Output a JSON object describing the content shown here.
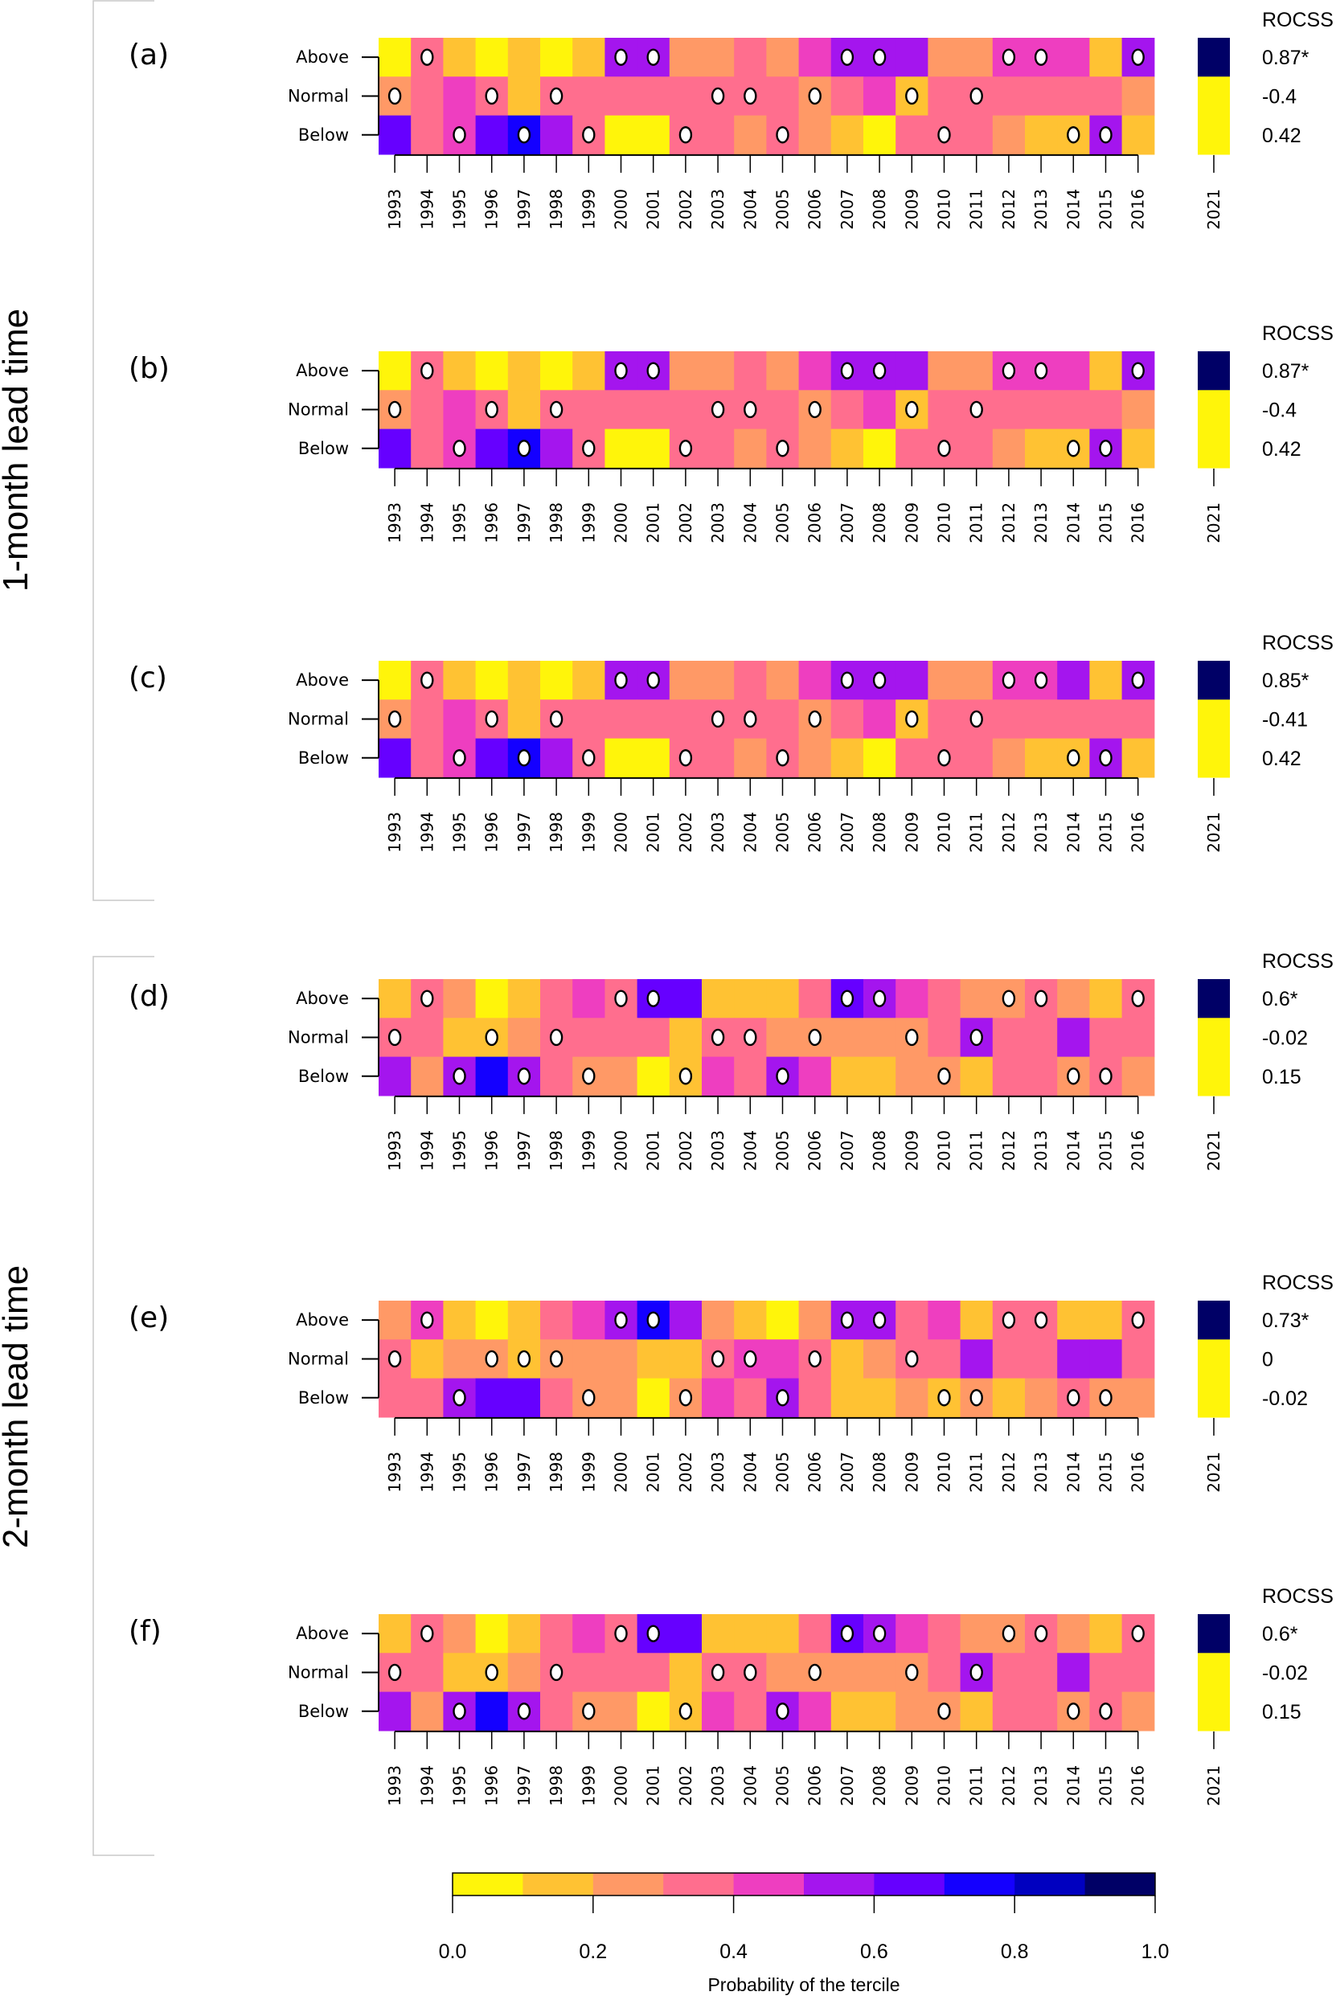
{
  "chart_data": {
    "type": "heatmap",
    "title": "",
    "years": [
      "1993",
      "1994",
      "1995",
      "1996",
      "1997",
      "1998",
      "1999",
      "2000",
      "2001",
      "2002",
      "2003",
      "2004",
      "2005",
      "2006",
      "2007",
      "2008",
      "2009",
      "2010",
      "2011",
      "2012",
      "2013",
      "2014",
      "2015",
      "2016"
    ],
    "forecast_year": "2021",
    "rows": [
      "Above",
      "Normal",
      "Below"
    ],
    "value_encoding": "probability bin index (0 = 0.0-0.1 ... 9 = 0.9-1.0); observed tercile marked with a dot",
    "lead_groups": [
      {
        "label": "1-month lead time",
        "panels": [
          "(a)",
          "(b)",
          "(c)"
        ]
      },
      {
        "label": "2-month lead time",
        "panels": [
          "(d)",
          "(e)",
          "(f)"
        ]
      }
    ],
    "panels": [
      {
        "label": "(a)",
        "bins": {
          "Above": [
            0,
            3,
            1,
            0,
            1,
            0,
            1,
            5,
            5,
            2,
            2,
            3,
            2,
            4,
            5,
            5,
            5,
            2,
            2,
            4,
            4,
            4,
            1,
            5
          ],
          "Normal": [
            2,
            3,
            4,
            3,
            1,
            3,
            3,
            3,
            3,
            3,
            3,
            3,
            3,
            2,
            3,
            4,
            1,
            3,
            3,
            3,
            3,
            3,
            3,
            2
          ],
          "Below": [
            6,
            3,
            4,
            6,
            7,
            5,
            3,
            0,
            0,
            3,
            3,
            2,
            3,
            2,
            1,
            0,
            3,
            3,
            3,
            2,
            1,
            1,
            5,
            1
          ]
        },
        "observed": {
          "Above": [
            0,
            1,
            0,
            0,
            0,
            0,
            0,
            1,
            1,
            0,
            0,
            0,
            0,
            0,
            1,
            1,
            0,
            0,
            0,
            1,
            1,
            0,
            0,
            1
          ],
          "Normal": [
            1,
            0,
            0,
            1,
            0,
            1,
            0,
            0,
            0,
            0,
            1,
            1,
            0,
            1,
            0,
            0,
            1,
            0,
            1,
            0,
            0,
            0,
            0,
            0
          ],
          "Below": [
            0,
            0,
            1,
            0,
            1,
            0,
            1,
            0,
            0,
            1,
            0,
            0,
            1,
            0,
            0,
            0,
            0,
            1,
            0,
            0,
            0,
            1,
            1,
            0
          ]
        },
        "rocss_title": "ROCSS",
        "rocss_bins": {
          "Above": 9,
          "Normal": 0,
          "Below": 0
        },
        "rocss": {
          "Above": "0.87*",
          "Normal": "-0.4",
          "Below": "0.42"
        }
      },
      {
        "label": "(b)",
        "bins": {
          "Above": [
            0,
            3,
            1,
            0,
            1,
            0,
            1,
            5,
            5,
            2,
            2,
            3,
            2,
            4,
            5,
            5,
            5,
            2,
            2,
            4,
            4,
            4,
            1,
            5
          ],
          "Normal": [
            2,
            3,
            4,
            3,
            1,
            3,
            3,
            3,
            3,
            3,
            3,
            3,
            3,
            2,
            3,
            4,
            1,
            3,
            3,
            3,
            3,
            3,
            3,
            2
          ],
          "Below": [
            6,
            3,
            4,
            6,
            7,
            5,
            3,
            0,
            0,
            3,
            3,
            2,
            3,
            2,
            1,
            0,
            3,
            3,
            3,
            2,
            1,
            1,
            5,
            1
          ]
        },
        "observed": {
          "Above": [
            0,
            1,
            0,
            0,
            0,
            0,
            0,
            1,
            1,
            0,
            0,
            0,
            0,
            0,
            1,
            1,
            0,
            0,
            0,
            1,
            1,
            0,
            0,
            1
          ],
          "Normal": [
            1,
            0,
            0,
            1,
            0,
            1,
            0,
            0,
            0,
            0,
            1,
            1,
            0,
            1,
            0,
            0,
            1,
            0,
            1,
            0,
            0,
            0,
            0,
            0
          ],
          "Below": [
            0,
            0,
            1,
            0,
            1,
            0,
            1,
            0,
            0,
            1,
            0,
            0,
            1,
            0,
            0,
            0,
            0,
            1,
            0,
            0,
            0,
            1,
            1,
            0
          ]
        },
        "rocss_title": "ROCSS",
        "rocss_bins": {
          "Above": 9,
          "Normal": 0,
          "Below": 0
        },
        "rocss": {
          "Above": "0.87*",
          "Normal": "-0.4",
          "Below": "0.42"
        }
      },
      {
        "label": "(c)",
        "bins": {
          "Above": [
            0,
            3,
            1,
            0,
            1,
            0,
            1,
            5,
            5,
            2,
            2,
            3,
            2,
            4,
            5,
            5,
            5,
            2,
            2,
            4,
            4,
            5,
            1,
            5
          ],
          "Normal": [
            2,
            3,
            4,
            3,
            1,
            3,
            3,
            3,
            3,
            3,
            3,
            3,
            3,
            2,
            3,
            4,
            1,
            3,
            3,
            3,
            3,
            3,
            3,
            3
          ],
          "Below": [
            6,
            3,
            4,
            6,
            7,
            5,
            3,
            0,
            0,
            3,
            3,
            2,
            3,
            2,
            1,
            0,
            3,
            3,
            3,
            2,
            1,
            1,
            5,
            1
          ]
        },
        "observed": {
          "Above": [
            0,
            1,
            0,
            0,
            0,
            0,
            0,
            1,
            1,
            0,
            0,
            0,
            0,
            0,
            1,
            1,
            0,
            0,
            0,
            1,
            1,
            0,
            0,
            1
          ],
          "Normal": [
            1,
            0,
            0,
            1,
            0,
            1,
            0,
            0,
            0,
            0,
            1,
            1,
            0,
            1,
            0,
            0,
            1,
            0,
            1,
            0,
            0,
            0,
            0,
            0
          ],
          "Below": [
            0,
            0,
            1,
            0,
            1,
            0,
            1,
            0,
            0,
            1,
            0,
            0,
            1,
            0,
            0,
            0,
            0,
            1,
            0,
            0,
            0,
            1,
            1,
            0
          ]
        },
        "rocss_title": "ROCSS",
        "rocss_bins": {
          "Above": 9,
          "Normal": 0,
          "Below": 0
        },
        "rocss": {
          "Above": "0.85*",
          "Normal": "-0.41",
          "Below": "0.42"
        }
      },
      {
        "label": "(d)",
        "bins": {
          "Above": [
            1,
            3,
            2,
            0,
            1,
            3,
            4,
            3,
            6,
            6,
            1,
            1,
            1,
            3,
            6,
            5,
            4,
            3,
            2,
            2,
            3,
            2,
            1,
            3
          ],
          "Normal": [
            3,
            3,
            1,
            1,
            2,
            3,
            3,
            3,
            3,
            1,
            3,
            3,
            2,
            2,
            2,
            2,
            2,
            3,
            5,
            3,
            3,
            5,
            3,
            3
          ],
          "Below": [
            5,
            2,
            5,
            7,
            5,
            3,
            2,
            2,
            0,
            1,
            4,
            3,
            5,
            4,
            1,
            1,
            2,
            2,
            1,
            3,
            3,
            2,
            3,
            2
          ]
        },
        "observed": {
          "Above": [
            0,
            1,
            0,
            0,
            0,
            0,
            0,
            1,
            1,
            0,
            0,
            0,
            0,
            0,
            1,
            1,
            0,
            0,
            0,
            1,
            1,
            0,
            0,
            1
          ],
          "Normal": [
            1,
            0,
            0,
            1,
            0,
            1,
            0,
            0,
            0,
            0,
            1,
            1,
            0,
            1,
            0,
            0,
            1,
            0,
            1,
            0,
            0,
            0,
            0,
            0
          ],
          "Below": [
            0,
            0,
            1,
            0,
            1,
            0,
            1,
            0,
            0,
            1,
            0,
            0,
            1,
            0,
            0,
            0,
            0,
            1,
            0,
            0,
            0,
            1,
            1,
            0
          ]
        },
        "rocss_title": "ROCSS",
        "rocss_bins": {
          "Above": 9,
          "Normal": 0,
          "Below": 0
        },
        "rocss": {
          "Above": "0.6*",
          "Normal": "-0.02",
          "Below": "0.15"
        }
      },
      {
        "label": "(e)",
        "bins": {
          "Above": [
            2,
            4,
            1,
            0,
            1,
            3,
            4,
            5,
            7,
            5,
            2,
            1,
            0,
            2,
            5,
            5,
            3,
            4,
            1,
            3,
            3,
            1,
            1,
            3
          ],
          "Normal": [
            3,
            1,
            2,
            2,
            1,
            2,
            2,
            2,
            1,
            1,
            3,
            4,
            4,
            3,
            1,
            2,
            3,
            3,
            5,
            3,
            3,
            5,
            5,
            3
          ],
          "Below": [
            3,
            3,
            5,
            6,
            6,
            3,
            2,
            2,
            0,
            2,
            4,
            3,
            5,
            3,
            1,
            1,
            2,
            1,
            2,
            1,
            2,
            3,
            2,
            2
          ]
        },
        "observed": {
          "Above": [
            0,
            1,
            0,
            0,
            0,
            0,
            0,
            1,
            1,
            0,
            0,
            0,
            0,
            0,
            1,
            1,
            0,
            0,
            0,
            1,
            1,
            0,
            0,
            1
          ],
          "Normal": [
            1,
            0,
            0,
            1,
            1,
            1,
            0,
            0,
            0,
            0,
            1,
            1,
            0,
            1,
            0,
            0,
            1,
            0,
            0,
            0,
            0,
            0,
            0,
            0
          ],
          "Below": [
            0,
            0,
            1,
            0,
            0,
            0,
            1,
            0,
            0,
            1,
            0,
            0,
            1,
            0,
            0,
            0,
            0,
            1,
            1,
            0,
            0,
            1,
            1,
            0
          ]
        },
        "rocss_title": "ROCSS",
        "rocss_bins": {
          "Above": 9,
          "Normal": 0,
          "Below": 0
        },
        "rocss": {
          "Above": "0.73*",
          "Normal": "0",
          "Below": "-0.02"
        }
      },
      {
        "label": "(f)",
        "bins": {
          "Above": [
            1,
            3,
            2,
            0,
            1,
            3,
            4,
            3,
            6,
            6,
            1,
            1,
            1,
            3,
            6,
            5,
            4,
            3,
            2,
            2,
            3,
            2,
            1,
            3
          ],
          "Normal": [
            3,
            3,
            1,
            1,
            2,
            3,
            3,
            3,
            3,
            1,
            3,
            3,
            2,
            2,
            2,
            2,
            2,
            3,
            5,
            3,
            3,
            5,
            3,
            3
          ],
          "Below": [
            5,
            2,
            5,
            7,
            5,
            3,
            2,
            2,
            0,
            1,
            4,
            3,
            5,
            4,
            1,
            1,
            2,
            2,
            1,
            3,
            3,
            2,
            3,
            2
          ]
        },
        "observed": {
          "Above": [
            0,
            1,
            0,
            0,
            0,
            0,
            0,
            1,
            1,
            0,
            0,
            0,
            0,
            0,
            1,
            1,
            0,
            0,
            0,
            1,
            1,
            0,
            0,
            1
          ],
          "Normal": [
            1,
            0,
            0,
            1,
            0,
            1,
            0,
            0,
            0,
            0,
            1,
            1,
            0,
            1,
            0,
            0,
            1,
            0,
            1,
            0,
            0,
            0,
            0,
            0
          ],
          "Below": [
            0,
            0,
            1,
            0,
            1,
            0,
            1,
            0,
            0,
            1,
            0,
            0,
            1,
            0,
            0,
            0,
            0,
            1,
            0,
            0,
            0,
            1,
            1,
            0
          ]
        },
        "rocss_title": "ROCSS",
        "rocss_bins": {
          "Above": 9,
          "Normal": 0,
          "Below": 0
        },
        "rocss": {
          "Above": "0.6*",
          "Normal": "-0.02",
          "Below": "0.15"
        }
      }
    ],
    "colorbar": {
      "title": "Probability of the tercile",
      "range": [
        0.0,
        1.0
      ],
      "tick_labels": [
        "0.0",
        "0.2",
        "0.4",
        "0.6",
        "0.8",
        "1.0"
      ],
      "tick_values": [
        0.0,
        0.2,
        0.4,
        0.6,
        0.8,
        1.0
      ],
      "colors": [
        "#FFF50A",
        "#FFC233",
        "#FF9966",
        "#FF6E8E",
        "#EE3EC0",
        "#A415EE",
        "#6600FF",
        "#1400FF",
        "#0000C0",
        "#000066"
      ],
      "placement": "bottom"
    }
  }
}
